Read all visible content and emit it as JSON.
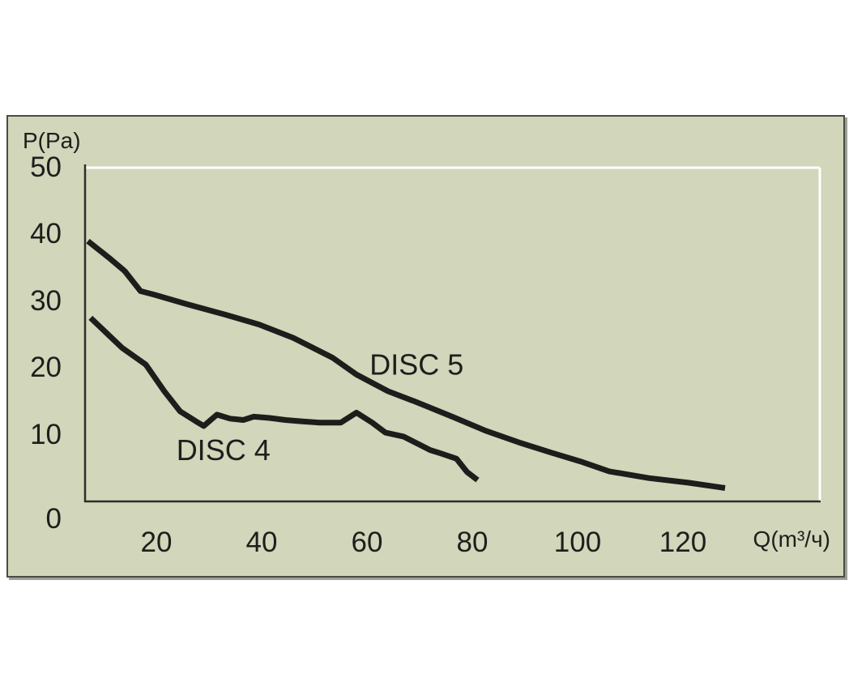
{
  "chart_data": {
    "type": "line",
    "title": "",
    "xlabel": "Q(m³/ч)",
    "ylabel": "P(Pa)",
    "x_ticks": [
      20,
      40,
      60,
      80,
      100,
      120
    ],
    "y_ticks": [
      0,
      10,
      20,
      30,
      40,
      50
    ],
    "xlim": [
      6.5,
      146
    ],
    "ylim": [
      0,
      50
    ],
    "grid": false,
    "legend": "inline-labels",
    "series": [
      {
        "name": "DISC 5",
        "label": {
          "text": "DISC 5",
          "q": 60.5,
          "p": 19.0
        },
        "points": [
          [
            7,
            39
          ],
          [
            11,
            36.5
          ],
          [
            14,
            34.5
          ],
          [
            17,
            31.5
          ],
          [
            19.5,
            31
          ],
          [
            26,
            29.5
          ],
          [
            33,
            28
          ],
          [
            39.5,
            26.5
          ],
          [
            46,
            24.5
          ],
          [
            53.5,
            21.5
          ],
          [
            58,
            19
          ],
          [
            64,
            16.5
          ],
          [
            69,
            15
          ],
          [
            76.5,
            12.6
          ],
          [
            82.5,
            10.6
          ],
          [
            89,
            8.8
          ],
          [
            95,
            7.3
          ],
          [
            100.5,
            6
          ],
          [
            106,
            4.5
          ],
          [
            113.5,
            3.5
          ],
          [
            121,
            2.8
          ],
          [
            128,
            2
          ]
        ]
      },
      {
        "name": "DISC 4",
        "label": {
          "text": "DISC 4",
          "q": 23.8,
          "p": 6.2
        },
        "points": [
          [
            7.5,
            27.5
          ],
          [
            13.5,
            23
          ],
          [
            18,
            20.5
          ],
          [
            21.5,
            16.5
          ],
          [
            24.5,
            13.5
          ],
          [
            27.5,
            12
          ],
          [
            29,
            11.3
          ],
          [
            31.5,
            13
          ],
          [
            34,
            12.4
          ],
          [
            36.5,
            12.2
          ],
          [
            38.5,
            12.7
          ],
          [
            41.5,
            12.5
          ],
          [
            44.5,
            12.2
          ],
          [
            47.5,
            12
          ],
          [
            51,
            11.8
          ],
          [
            55,
            11.8
          ],
          [
            58,
            13.3
          ],
          [
            61,
            11.8
          ],
          [
            63.5,
            10.3
          ],
          [
            67,
            9.7
          ],
          [
            70,
            8.5
          ],
          [
            72,
            7.7
          ],
          [
            74,
            7.2
          ],
          [
            77,
            6.4
          ],
          [
            79,
            4.4
          ],
          [
            81,
            3.2
          ]
        ]
      }
    ],
    "colors": {
      "page_bg": "#ffffff",
      "panel_bg": "#d2d6ba",
      "panel_border": "#4b4b45",
      "panel_shadow": "#9aa095",
      "curve": "#1d1d1b",
      "axis_dark": "#2e2e2a",
      "axis_light": "#ffffff",
      "text": "#1e1e1c"
    }
  }
}
